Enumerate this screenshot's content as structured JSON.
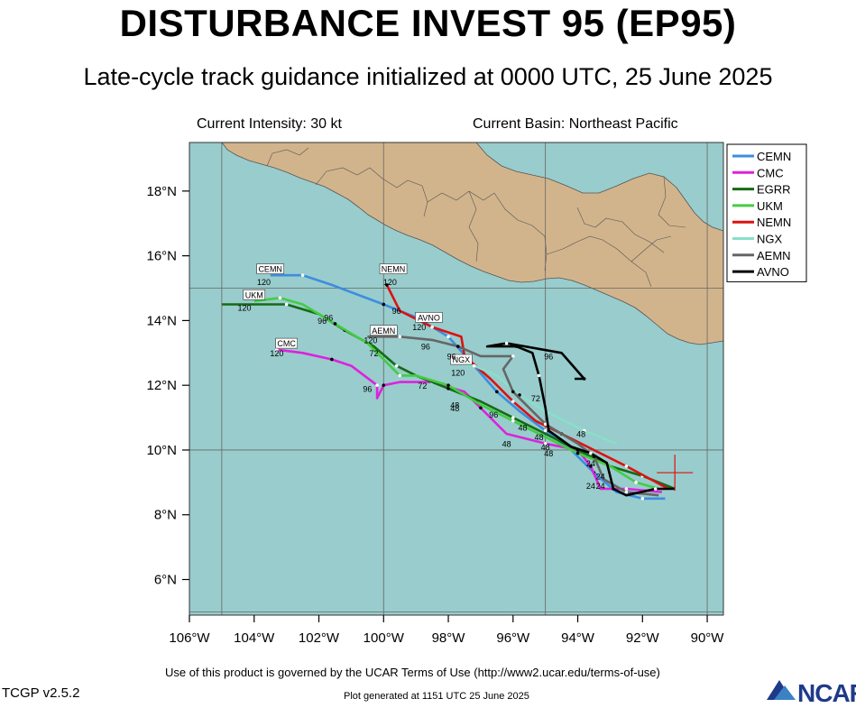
{
  "title": "DISTURBANCE INVEST 95 (EP95)",
  "subtitle": "Late-cycle track guidance initialized at 0000 UTC, 25 June 2025",
  "current_intensity": "Current Intensity: 30 kt",
  "current_basin": "Current Basin: Northeast Pacific",
  "footer": {
    "terms": "Use of this product is governed by the UCAR Terms of Use (http://www2.ucar.edu/terms-of-use)",
    "version": "TCGP v2.5.2",
    "generated": "Plot generated at 1151 UTC   25 June 2025",
    "logo": "NCAR"
  },
  "colors": {
    "ocean": "#99cccc",
    "land": "#d2b48c",
    "CEMN": "#3d8de0",
    "CMC": "#dd22dd",
    "EGRR": "#146b14",
    "UKM": "#44cc44",
    "NEMN": "#dd1111",
    "NGX": "#88e0c8",
    "AEMN": "#666666",
    "AVNO": "#000000"
  },
  "map": {
    "lon_range": [
      -106,
      -89.5
    ],
    "lat_range": [
      4.9,
      19.5
    ],
    "x_ticks": [
      {
        "lon": -106,
        "label": "106°W"
      },
      {
        "lon": -104,
        "label": "104°W"
      },
      {
        "lon": -102,
        "label": "102°W"
      },
      {
        "lon": -100,
        "label": "100°W"
      },
      {
        "lon": -98,
        "label": "98°W"
      },
      {
        "lon": -96,
        "label": "96°W"
      },
      {
        "lon": -94,
        "label": "94°W"
      },
      {
        "lon": -92,
        "label": "92°W"
      },
      {
        "lon": -90,
        "label": "90°W"
      }
    ],
    "y_ticks": [
      {
        "lat": 6,
        "label": "6°N"
      },
      {
        "lat": 8,
        "label": "8°N"
      },
      {
        "lat": 10,
        "label": "10°N"
      },
      {
        "lat": 12,
        "label": "12°N"
      },
      {
        "lat": 14,
        "label": "14°N"
      },
      {
        "lat": 16,
        "label": "16°N"
      },
      {
        "lat": 18,
        "label": "18°N"
      }
    ],
    "grid_lons": [
      -105,
      -100,
      -95,
      -90
    ],
    "grid_lats": [
      5,
      10,
      15
    ],
    "current_position": {
      "lon": -91.0,
      "lat": 9.3
    },
    "legend_order": [
      "CEMN",
      "CMC",
      "EGRR",
      "UKM",
      "NEMN",
      "NGX",
      "AEMN",
      "AVNO"
    ],
    "tracks": [
      {
        "model": "CEMN",
        "points": [
          [
            -91.3,
            8.5
          ],
          [
            -92.0,
            8.5
          ],
          [
            -92.8,
            8.7
          ],
          [
            -93.5,
            9.3
          ],
          [
            -94.2,
            10.0
          ],
          [
            -95.0,
            10.6
          ],
          [
            -95.8,
            11.2
          ],
          [
            -96.5,
            11.8
          ],
          [
            -97.2,
            12.6
          ],
          [
            -98.0,
            13.5
          ],
          [
            -99.0,
            14.1
          ],
          [
            -100.0,
            14.5
          ],
          [
            -101.6,
            15.1
          ],
          [
            -102.5,
            15.4
          ],
          [
            -103.5,
            15.4
          ]
        ],
        "tag": "CEMN",
        "tag_pos": [
          -103.5,
          15.5
        ],
        "hours": [
          {
            "t": "120",
            "pos": [
              -103.7,
              15.1
            ]
          }
        ]
      },
      {
        "model": "CMC",
        "points": [
          [
            -91.4,
            8.7
          ],
          [
            -92.5,
            8.8
          ],
          [
            -93.3,
            8.8
          ],
          [
            -93.6,
            9.5
          ],
          [
            -94.0,
            10.0
          ],
          [
            -95.0,
            10.2
          ],
          [
            -96.2,
            10.5
          ],
          [
            -97.0,
            11.3
          ],
          [
            -97.5,
            11.8
          ],
          [
            -98.5,
            12.1
          ],
          [
            -99.5,
            12.1
          ],
          [
            -100.0,
            12.0
          ],
          [
            -100.2,
            11.6
          ],
          [
            -100.2,
            12.0
          ],
          [
            -101.0,
            12.6
          ],
          [
            -101.6,
            12.8
          ],
          [
            -102.5,
            13.0
          ],
          [
            -103.3,
            13.1
          ]
        ],
        "tag": "CMC",
        "tag_pos": [
          -103.0,
          13.2
        ],
        "hours": [
          {
            "t": "120",
            "pos": [
              -103.3,
              12.9
            ]
          },
          {
            "t": "96",
            "pos": [
              -100.5,
              11.8
            ]
          },
          {
            "t": "72",
            "pos": [
              -98.8,
              11.9
            ]
          },
          {
            "t": "48",
            "pos": [
              -96.2,
              10.1
            ]
          }
        ]
      },
      {
        "model": "EGRR",
        "points": [
          [
            -91.0,
            8.8
          ],
          [
            -92.0,
            9.2
          ],
          [
            -93.0,
            9.5
          ],
          [
            -94.0,
            10.0
          ],
          [
            -95.0,
            10.5
          ],
          [
            -96.0,
            11.0
          ],
          [
            -97.0,
            11.5
          ],
          [
            -98.0,
            11.9
          ],
          [
            -99.0,
            12.3
          ],
          [
            -99.6,
            12.6
          ],
          [
            -100.3,
            13.2
          ],
          [
            -101.2,
            13.7
          ],
          [
            -102.0,
            14.2
          ],
          [
            -103.0,
            14.5
          ],
          [
            -105.0,
            14.5
          ]
        ],
        "hours": [
          {
            "t": "96",
            "pos": [
              -101.9,
              13.9
            ]
          },
          {
            "t": "48",
            "pos": [
              -97.8,
              11.2
            ]
          }
        ]
      },
      {
        "model": "UKM",
        "points": [
          [
            -91.5,
            8.8
          ],
          [
            -92.2,
            9.0
          ],
          [
            -93.0,
            9.5
          ],
          [
            -94.0,
            9.9
          ],
          [
            -95.0,
            10.4
          ],
          [
            -96.0,
            10.9
          ],
          [
            -97.0,
            11.4
          ],
          [
            -98.0,
            12.0
          ],
          [
            -99.0,
            12.3
          ],
          [
            -99.5,
            12.3
          ],
          [
            -100.5,
            13.3
          ],
          [
            -101.5,
            13.9
          ],
          [
            -102.5,
            14.5
          ],
          [
            -103.2,
            14.7
          ],
          [
            -104.0,
            14.6
          ]
        ],
        "tag": "UKM",
        "tag_pos": [
          -104.0,
          14.7
        ],
        "hours": [
          {
            "t": "120",
            "pos": [
              -104.3,
              14.3
            ]
          },
          {
            "t": "96",
            "pos": [
              -101.7,
              14.0
            ]
          },
          {
            "t": "48",
            "pos": [
              -97.8,
              11.3
            ]
          }
        ]
      },
      {
        "model": "NEMN",
        "points": [
          [
            -91.2,
            8.8
          ],
          [
            -92.5,
            9.5
          ],
          [
            -93.5,
            10.0
          ],
          [
            -94.5,
            10.5
          ],
          [
            -95.3,
            10.9
          ],
          [
            -96.0,
            11.5
          ],
          [
            -96.7,
            12.2
          ],
          [
            -97.5,
            12.9
          ],
          [
            -97.6,
            13.5
          ],
          [
            -98.5,
            13.8
          ],
          [
            -99.5,
            14.3
          ],
          [
            -99.9,
            15.1
          ]
        ],
        "tag": "NEMN",
        "tag_pos": [
          -99.7,
          15.5
        ],
        "hours": [
          {
            "t": "120",
            "pos": [
              -99.8,
              15.1
            ]
          },
          {
            "t": "96",
            "pos": [
              -99.6,
              14.2
            ]
          }
        ]
      },
      {
        "model": "NGX",
        "points": [
          [
            -92.8,
            10.2
          ],
          [
            -93.8,
            10.6
          ],
          [
            -95.0,
            11.2
          ],
          [
            -95.8,
            11.7
          ],
          [
            -96.5,
            12.3
          ],
          [
            -97.2,
            12.6
          ],
          [
            -97.8,
            12.7
          ]
        ],
        "tag": "NGX",
        "tag_pos": [
          -97.6,
          12.7
        ],
        "hours": [
          {
            "t": "72",
            "pos": [
              -95.3,
              11.5
            ]
          },
          {
            "t": "48",
            "pos": [
              -93.9,
              10.4
            ]
          }
        ]
      },
      {
        "model": "AEMN",
        "points": [
          [
            -91.5,
            8.6
          ],
          [
            -92.5,
            8.7
          ],
          [
            -93.2,
            9.1
          ],
          [
            -93.5,
            9.8
          ],
          [
            -94.0,
            10.2
          ],
          [
            -95.0,
            10.8
          ],
          [
            -95.5,
            11.3
          ],
          [
            -96.0,
            11.8
          ],
          [
            -96.3,
            12.5
          ],
          [
            -96.0,
            12.9
          ],
          [
            -97.0,
            12.9
          ],
          [
            -97.7,
            13.2
          ],
          [
            -98.5,
            13.4
          ],
          [
            -99.5,
            13.5
          ],
          [
            -100.5,
            13.5
          ]
        ],
        "tag": "AEMN",
        "tag_pos": [
          -100.0,
          13.6
        ],
        "hours": [
          {
            "t": "120",
            "pos": [
              -100.4,
              13.3
            ]
          },
          {
            "t": "72",
            "pos": [
              -100.3,
              12.9
            ]
          },
          {
            "t": "96",
            "pos": [
              -98.7,
              13.1
            ]
          }
        ]
      },
      {
        "model": "AVNO",
        "points": [
          [
            -91.0,
            8.8
          ],
          [
            -91.6,
            8.8
          ],
          [
            -92.5,
            8.6
          ],
          [
            -92.9,
            8.8
          ],
          [
            -93.1,
            9.6
          ],
          [
            -93.6,
            9.9
          ],
          [
            -94.2,
            10.1
          ],
          [
            -94.9,
            10.6
          ],
          [
            -95.0,
            11.3
          ],
          [
            -95.2,
            12.3
          ],
          [
            -95.4,
            13.0
          ],
          [
            -95.9,
            13.2
          ],
          [
            -96.8,
            13.2
          ],
          [
            -96.2,
            13.3
          ],
          [
            -94.5,
            13.0
          ],
          [
            -93.8,
            12.2
          ],
          [
            -94.1,
            12.2
          ]
        ],
        "tag": "AVNO",
        "tag_pos": [
          -98.6,
          14.0
        ],
        "hours": [
          {
            "t": "96",
            "pos": [
              -94.9,
              12.8
            ]
          },
          {
            "t": "120",
            "pos": [
              -98.9,
              13.7
            ]
          }
        ]
      }
    ],
    "extra_hour_labels": [
      {
        "t": "96",
        "pos": [
          -97.9,
          12.8
        ]
      },
      {
        "t": "120",
        "pos": [
          -97.7,
          12.3
        ]
      },
      {
        "t": "96",
        "pos": [
          -96.6,
          11.0
        ]
      },
      {
        "t": "48",
        "pos": [
          -95.7,
          10.6
        ]
      },
      {
        "t": "48",
        "pos": [
          -95.2,
          10.3
        ]
      },
      {
        "t": "48",
        "pos": [
          -95.0,
          10.0
        ]
      },
      {
        "t": "48",
        "pos": [
          -94.9,
          9.8
        ]
      },
      {
        "t": "24",
        "pos": [
          -93.6,
          9.5
        ]
      },
      {
        "t": "24",
        "pos": [
          -93.3,
          9.1
        ]
      },
      {
        "t": "24",
        "pos": [
          -93.6,
          8.8
        ]
      },
      {
        "t": "24",
        "pos": [
          -93.3,
          8.8
        ]
      }
    ]
  }
}
